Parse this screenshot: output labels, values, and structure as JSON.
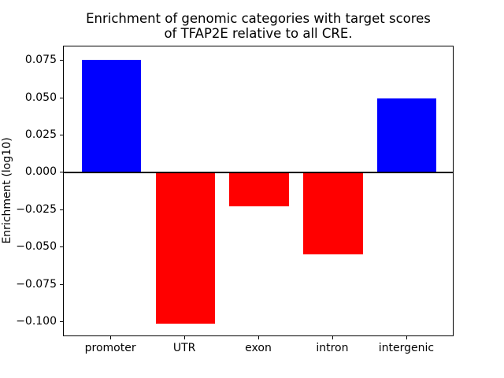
{
  "figure": {
    "background": "#ffffff",
    "text_color": "#000000"
  },
  "chart_data": {
    "type": "bar",
    "title": "Enrichment of genomic categories with target scores\nof TFAP2E relative to all CRE.",
    "xlabel": "",
    "ylabel": "Enrichment (log10)",
    "categories": [
      "promoter",
      "UTR",
      "exon",
      "intron",
      "intergenic"
    ],
    "values": [
      0.0757,
      -0.1012,
      -0.0223,
      -0.0545,
      0.0499
    ],
    "bar_colors": [
      "#0000ff",
      "#ff0000",
      "#ff0000",
      "#ff0000",
      "#0000ff"
    ],
    "positive_color": "#0000ff",
    "negative_color": "#ff0000",
    "yticks": [
      0.075,
      0.05,
      0.025,
      0.0,
      -0.025,
      -0.05,
      -0.075,
      -0.1
    ],
    "ytick_labels": [
      "0.075",
      "0.050",
      "0.025",
      "0.000",
      "−0.025",
      "−0.050",
      "−0.075",
      "−0.100"
    ],
    "ylim": [
      -0.11,
      0.0845
    ],
    "xlim": [
      -0.64,
      4.64
    ],
    "bar_width": 0.8,
    "grid": false,
    "legend": null,
    "zero_line": true,
    "zero_line_color": "#000000"
  }
}
